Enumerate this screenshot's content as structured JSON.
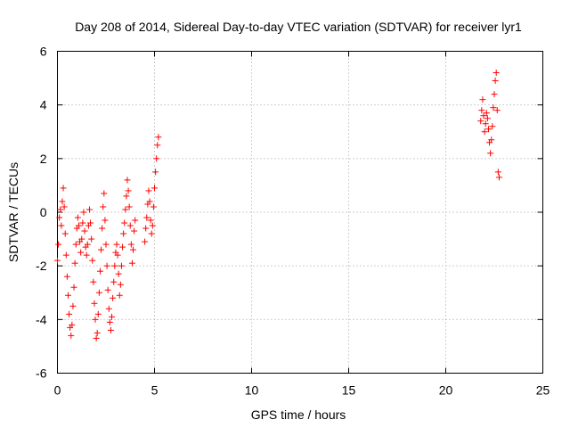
{
  "chart_data": {
    "type": "scatter",
    "title": "Day 208 of 2014, Sidereal Day-to-day VTEC variation (SDTVAR) for receiver lyr1",
    "xlabel": "GPS time / hours",
    "ylabel": "SDTVAR / TECUs",
    "xlim": [
      0,
      25
    ],
    "ylim": [
      -6,
      6
    ],
    "xticks": [
      "0",
      "5",
      "10",
      "15",
      "20",
      "25"
    ],
    "yticks": [
      "-6",
      "-4",
      "-2",
      "0",
      "2",
      "4",
      "6"
    ],
    "grid": true,
    "marker": "+",
    "series": [
      {
        "name": "SDTVAR",
        "color": "#ff0000",
        "x": [
          0.0,
          0.05,
          0.1,
          0.15,
          0.2,
          0.25,
          0.3,
          0.35,
          0.4,
          0.45,
          0.5,
          0.55,
          0.6,
          0.65,
          0.7,
          0.75,
          0.8,
          0.85,
          0.9,
          0.95,
          1.0,
          1.05,
          1.1,
          1.15,
          1.2,
          1.25,
          1.3,
          1.35,
          1.4,
          1.45,
          1.5,
          1.55,
          1.6,
          1.65,
          1.7,
          1.75,
          1.8,
          1.85,
          1.9,
          1.95,
          2.0,
          2.05,
          2.1,
          2.15,
          2.2,
          2.25,
          2.3,
          2.35,
          2.4,
          2.45,
          2.5,
          2.55,
          2.6,
          2.65,
          2.7,
          2.75,
          2.8,
          2.85,
          2.9,
          2.95,
          3.0,
          3.05,
          3.1,
          3.15,
          3.2,
          3.25,
          3.3,
          3.35,
          3.4,
          3.45,
          3.5,
          3.55,
          3.6,
          3.65,
          3.7,
          3.75,
          3.8,
          3.85,
          3.9,
          3.95,
          4.0,
          4.5,
          4.55,
          4.6,
          4.65,
          4.7,
          4.75,
          4.8,
          4.85,
          4.9,
          4.95,
          5.0,
          5.05,
          5.1,
          5.15,
          5.2,
          21.8,
          21.85,
          21.9,
          21.95,
          22.0,
          22.05,
          22.1,
          22.15,
          22.2,
          22.25,
          22.3,
          22.35,
          22.4,
          22.45,
          22.5,
          22.55,
          22.6,
          22.65,
          22.7,
          22.75
        ],
        "y": [
          -1.8,
          -1.2,
          -0.2,
          0.1,
          -0.5,
          0.4,
          0.9,
          0.2,
          -0.8,
          -1.6,
          -2.4,
          -3.1,
          -3.8,
          -4.3,
          -4.6,
          -4.2,
          -3.5,
          -2.8,
          -1.9,
          -1.2,
          -0.6,
          -0.2,
          -0.5,
          -1.1,
          -1.5,
          -1.0,
          -0.4,
          0.0,
          -0.7,
          -1.3,
          -1.6,
          -1.2,
          -0.5,
          0.1,
          -0.4,
          -1.0,
          -1.8,
          -2.6,
          -3.4,
          -4.0,
          -4.7,
          -4.5,
          -3.8,
          -3.0,
          -2.2,
          -1.4,
          -0.6,
          0.2,
          0.7,
          -0.3,
          -1.2,
          -2.0,
          -2.9,
          -3.6,
          -4.1,
          -4.4,
          -3.9,
          -3.2,
          -2.6,
          -2.0,
          -1.5,
          -1.2,
          -1.6,
          -2.3,
          -3.1,
          -2.7,
          -2.0,
          -1.3,
          -0.8,
          -0.4,
          0.1,
          0.6,
          1.2,
          0.8,
          0.2,
          -0.5,
          -1.2,
          -1.9,
          -1.4,
          -0.7,
          -0.3,
          -1.1,
          -0.6,
          -0.2,
          0.3,
          0.8,
          0.4,
          -0.3,
          -0.8,
          -0.5,
          0.2,
          0.9,
          1.5,
          2.0,
          2.5,
          2.8,
          3.4,
          3.8,
          4.2,
          3.6,
          3.0,
          3.3,
          3.7,
          3.5,
          3.1,
          2.6,
          2.2,
          2.7,
          3.2,
          3.9,
          4.4,
          4.9,
          5.2,
          3.8,
          1.5,
          1.3
        ]
      }
    ]
  }
}
